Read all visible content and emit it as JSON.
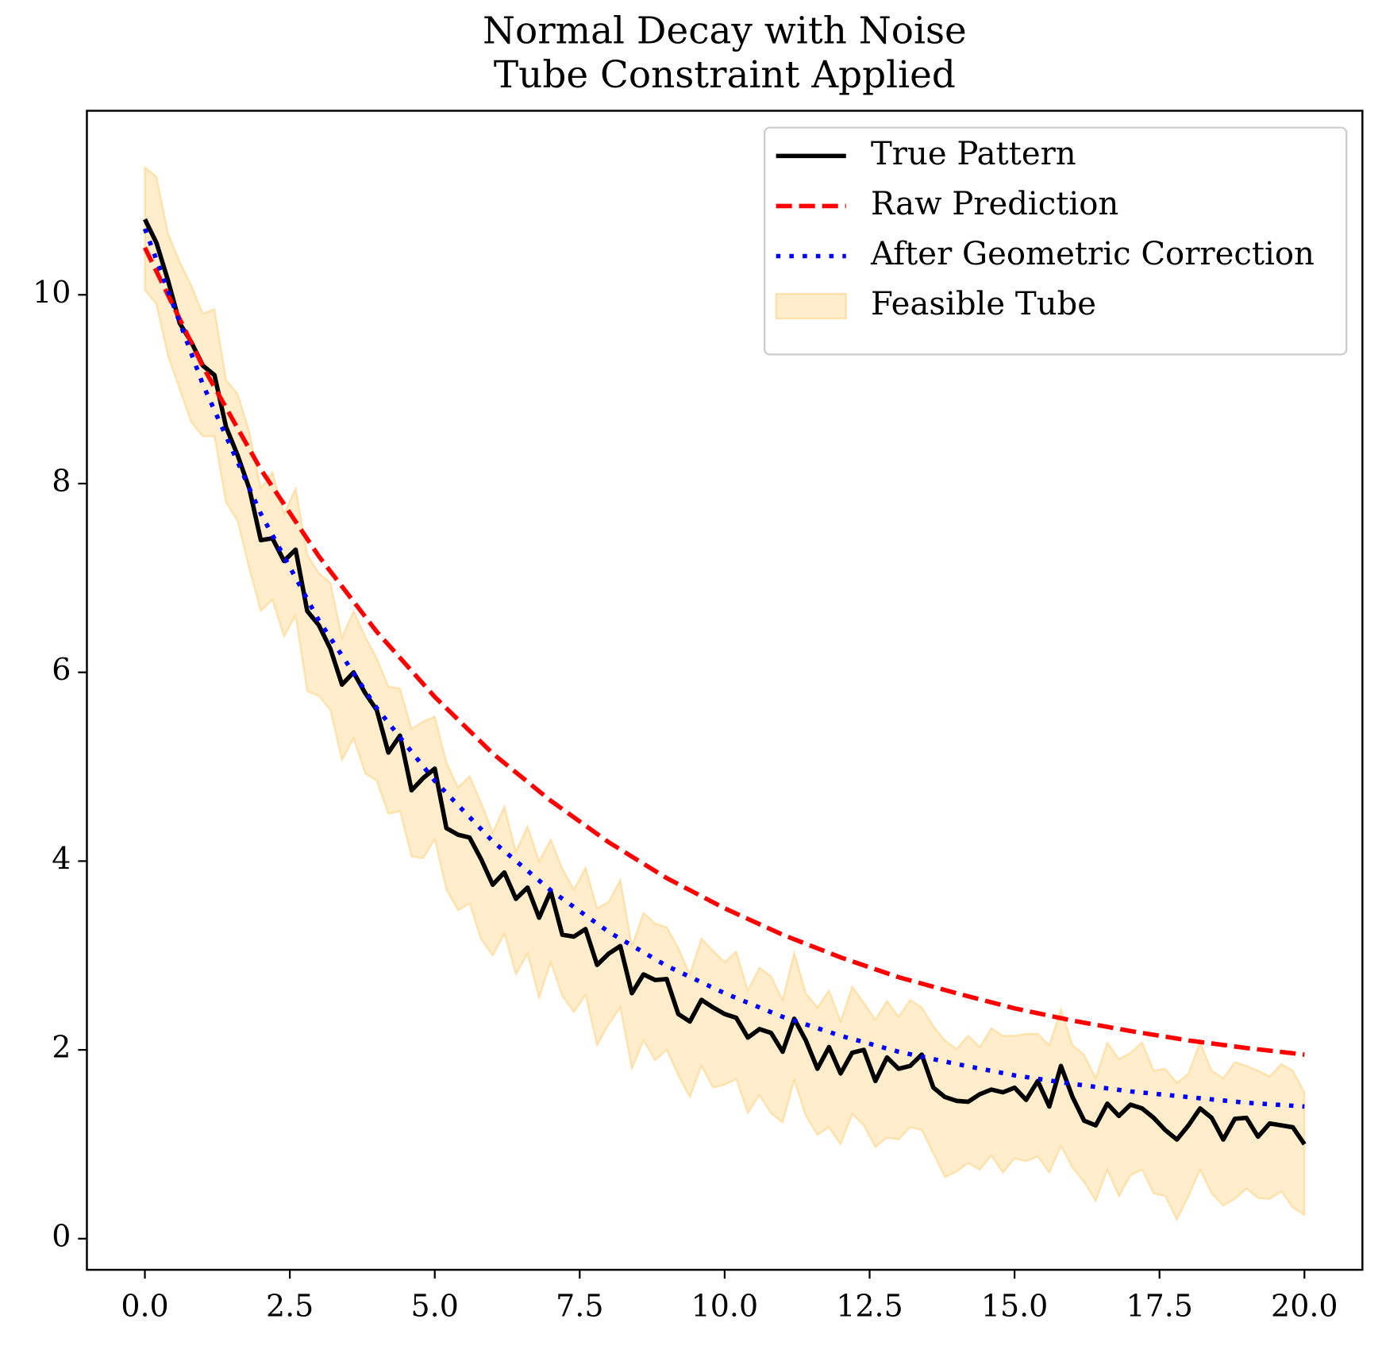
{
  "chart_data": {
    "type": "line",
    "title": "Normal Decay with Noise",
    "subtitle": "Tube Constraint Applied",
    "x": [
      0,
      0.2,
      0.4,
      0.6,
      0.8,
      1,
      1.2,
      1.4,
      1.6,
      1.8,
      2,
      2.2,
      2.4,
      2.6,
      2.8,
      3,
      3.2,
      3.4,
      3.6,
      3.8,
      4,
      4.2,
      4.4,
      4.6,
      4.8,
      5,
      5.2,
      5.4,
      5.6,
      5.8,
      6,
      6.2,
      6.4,
      6.6,
      6.8,
      7,
      7.2,
      7.4,
      7.6,
      7.8,
      8,
      8.2,
      8.4,
      8.6,
      8.8,
      9,
      9.2,
      9.4,
      9.6,
      9.8,
      10,
      10.2,
      10.4,
      10.6,
      10.8,
      11,
      11.2,
      11.4,
      11.6,
      11.8,
      12,
      12.2,
      12.4,
      12.6,
      12.8,
      13,
      13.2,
      13.4,
      13.6,
      13.8,
      14,
      14.2,
      14.4,
      14.6,
      14.8,
      15,
      15.2,
      15.4,
      15.6,
      15.8,
      16,
      16.2,
      16.4,
      16.6,
      16.8,
      17,
      17.2,
      17.4,
      17.6,
      17.8,
      18,
      18.2,
      18.4,
      18.6,
      18.8,
      19,
      19.2,
      19.4,
      19.6,
      19.8,
      20
    ],
    "series": [
      {
        "name": "True Pattern",
        "color": "#000000",
        "style": "solid",
        "values": [
          10.8,
          10.55,
          10.15,
          9.7,
          9.5,
          9.25,
          9.15,
          8.6,
          8.3,
          7.95,
          7.4,
          7.42,
          7.18,
          7.3,
          6.65,
          6.5,
          6.25,
          5.87,
          6.0,
          5.78,
          5.6,
          5.15,
          5.33,
          4.75,
          4.88,
          4.98,
          4.35,
          4.28,
          4.25,
          4.02,
          3.75,
          3.88,
          3.6,
          3.72,
          3.4,
          3.68,
          3.22,
          3.2,
          3.28,
          2.9,
          3.02,
          3.1,
          2.6,
          2.8,
          2.74,
          2.75,
          2.38,
          2.3,
          2.53,
          2.45,
          2.38,
          2.34,
          2.13,
          2.22,
          2.18,
          1.98,
          2.33,
          2.1,
          1.8,
          2.03,
          1.75,
          1.97,
          2.0,
          1.67,
          1.92,
          1.8,
          1.83,
          1.95,
          1.6,
          1.5,
          1.46,
          1.45,
          1.53,
          1.58,
          1.55,
          1.6,
          1.47,
          1.67,
          1.4,
          1.83,
          1.5,
          1.25,
          1.2,
          1.43,
          1.3,
          1.42,
          1.38,
          1.28,
          1.15,
          1.05,
          1.2,
          1.38,
          1.28,
          1.05,
          1.27,
          1.28,
          1.08,
          1.22,
          1.2,
          1.18,
          1.0
        ]
      },
      {
        "name": "Raw Prediction",
        "color": "#ff0000",
        "style": "dashed",
        "x": [
          0,
          1,
          2,
          3,
          4,
          5,
          6,
          7,
          8,
          9,
          10,
          11,
          12,
          13,
          14,
          15,
          16,
          17,
          18,
          19,
          20
        ],
        "values": [
          10.5,
          9.24,
          8.15,
          7.23,
          6.43,
          5.74,
          5.14,
          4.64,
          4.2,
          3.82,
          3.5,
          3.22,
          2.98,
          2.77,
          2.6,
          2.44,
          2.31,
          2.2,
          2.1,
          2.02,
          1.95
        ]
      },
      {
        "name": "After Geometric Correction",
        "color": "#0000ff",
        "style": "dotted",
        "x": [
          0,
          1,
          2,
          3,
          4,
          5,
          6,
          7,
          8,
          9,
          10,
          11,
          12,
          13,
          14,
          15,
          16,
          17,
          18,
          19,
          20
        ],
        "values": [
          10.7,
          9.05,
          7.68,
          6.55,
          5.62,
          4.85,
          4.21,
          3.69,
          3.25,
          2.89,
          2.6,
          2.35,
          2.15,
          1.98,
          1.85,
          1.73,
          1.64,
          1.56,
          1.5,
          1.44,
          1.4
        ]
      }
    ],
    "band": {
      "name": "Feasible Tube",
      "color": "#ffa500",
      "upper": [
        11.35,
        11.25,
        10.65,
        10.35,
        10.1,
        9.8,
        9.85,
        9.1,
        8.95,
        8.55,
        7.95,
        8.12,
        7.68,
        7.95,
        7.25,
        7.05,
        6.95,
        6.37,
        6.65,
        6.38,
        6.15,
        5.85,
        5.83,
        5.4,
        5.48,
        5.53,
        5.05,
        4.78,
        4.9,
        4.62,
        4.3,
        4.58,
        4.1,
        4.37,
        4.0,
        4.23,
        3.92,
        3.7,
        3.93,
        3.5,
        3.57,
        3.8,
        3.1,
        3.45,
        3.34,
        3.3,
        3.08,
        2.8,
        3.18,
        3.05,
        2.93,
        3.04,
        2.63,
        2.87,
        2.78,
        2.53,
        3.03,
        2.6,
        2.45,
        2.63,
        2.3,
        2.67,
        2.5,
        2.32,
        2.52,
        2.35,
        2.53,
        2.45,
        2.25,
        2.1,
        2.01,
        2.15,
        2.03,
        2.23,
        2.15,
        2.15,
        2.17,
        2.17,
        2.05,
        2.43,
        2.05,
        1.95,
        1.7,
        2.08,
        1.9,
        1.97,
        2.08,
        1.78,
        1.8,
        1.65,
        1.75,
        2.08,
        1.78,
        1.7,
        1.87,
        1.83,
        1.78,
        1.72,
        1.85,
        1.78,
        1.55
      ],
      "lower": [
        10.05,
        9.9,
        9.35,
        9.0,
        8.65,
        8.5,
        8.5,
        7.8,
        7.6,
        7.1,
        6.65,
        6.77,
        6.38,
        6.6,
        5.8,
        5.75,
        5.6,
        5.07,
        5.3,
        4.93,
        4.85,
        4.5,
        4.53,
        4.05,
        4.03,
        4.23,
        3.7,
        3.48,
        3.55,
        3.17,
        3.0,
        3.23,
        2.8,
        3.02,
        2.55,
        2.93,
        2.57,
        2.4,
        2.58,
        2.05,
        2.27,
        2.45,
        1.8,
        2.1,
        1.89,
        2.0,
        1.73,
        1.5,
        1.83,
        1.6,
        1.63,
        1.69,
        1.33,
        1.52,
        1.33,
        1.23,
        1.68,
        1.3,
        1.1,
        1.18,
        1.0,
        1.32,
        1.2,
        0.97,
        1.07,
        1.05,
        1.18,
        1.15,
        0.9,
        0.65,
        0.71,
        0.8,
        0.73,
        0.88,
        0.7,
        0.85,
        0.82,
        0.87,
        0.7,
        0.98,
        0.75,
        0.6,
        0.4,
        0.73,
        0.45,
        0.67,
        0.73,
        0.48,
        0.45,
        0.2,
        0.45,
        0.73,
        0.48,
        0.35,
        0.42,
        0.53,
        0.43,
        0.42,
        0.5,
        0.33,
        0.25
      ]
    },
    "xlim": [
      -1,
      21
    ],
    "ylim": [
      -0.33,
      11.95
    ],
    "xticks": [
      {
        "value": 0,
        "label": "0.0"
      },
      {
        "value": 2.5,
        "label": "2.5"
      },
      {
        "value": 5,
        "label": "5.0"
      },
      {
        "value": 7.5,
        "label": "7.5"
      },
      {
        "value": 10,
        "label": "10.0"
      },
      {
        "value": 12.5,
        "label": "12.5"
      },
      {
        "value": 15,
        "label": "15.0"
      },
      {
        "value": 17.5,
        "label": "17.5"
      },
      {
        "value": 20,
        "label": "20.0"
      }
    ],
    "yticks": [
      0,
      2,
      4,
      6,
      8,
      10
    ],
    "grid": false,
    "legend": "upper right"
  }
}
